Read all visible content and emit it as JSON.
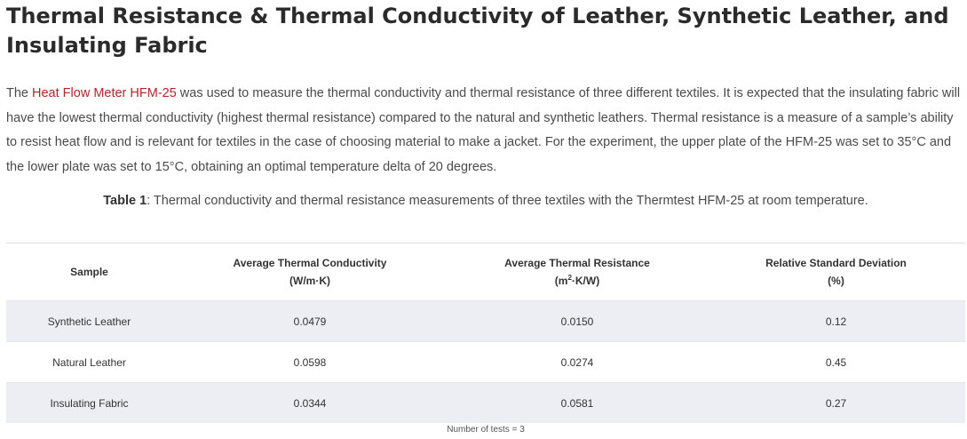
{
  "title": "Thermal Resistance & Thermal Conductivity of Leather, Synthetic Leather, and Insulating Fabric",
  "intro": {
    "before_link": "The ",
    "link_text": "Heat Flow Meter HFM-25",
    "after_link": " was used to measure the thermal conductivity and thermal resistance of three different textiles. It is expected that the insulating fabric will have the lowest thermal conductivity (highest thermal resistance) compared to the natural and synthetic leathers. Thermal resistance is a measure of a sample’s ability to resist heat flow and is relevant for textiles in the case of choosing material to make a jacket. For the experiment, the upper plate of the HFM-25 was set to 35°C and the lower plate was set to 15°C, obtaining an optimal temperature delta of 20 degrees."
  },
  "caption": {
    "label": "Table 1",
    "text": ": Thermal conductivity and thermal resistance measurements of three textiles with the Thermtest HFM-25 at room temperature."
  },
  "table": {
    "headers": [
      {
        "name": "Sample",
        "unit": ""
      },
      {
        "name": "Average Thermal Conductivity",
        "unit": "(W/m·K)"
      },
      {
        "name": "Average Thermal Resistance",
        "unit_pre": "(m",
        "unit_sup": "2",
        "unit_post": "·K/W)"
      },
      {
        "name": "Relative Standard Deviation",
        "unit": "(%)"
      }
    ],
    "rows": [
      [
        "Synthetic Leather",
        "0.0479",
        "0.0150",
        "0.12"
      ],
      [
        "Natural Leather",
        "0.0598",
        "0.0274",
        "0.45"
      ],
      [
        "Insulating Fabric",
        "0.0344",
        "0.0581",
        "0.27"
      ]
    ]
  },
  "note": "Number of tests = 3",
  "colors": {
    "link": "#b3262b",
    "row_shade": "#eceef3"
  }
}
